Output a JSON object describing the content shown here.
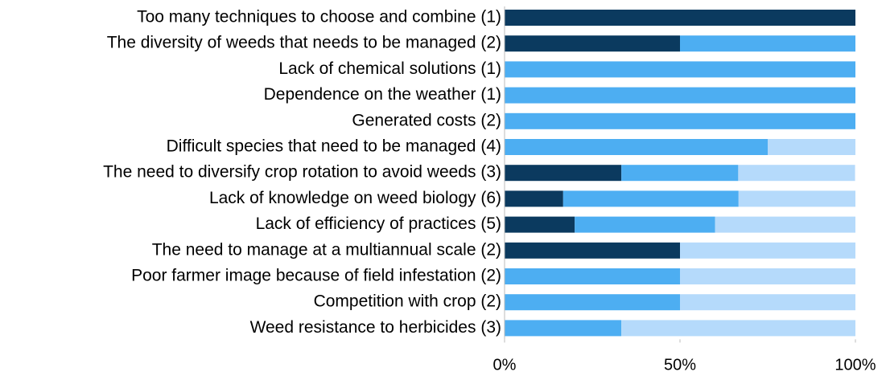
{
  "chart_data": {
    "type": "stacked_bar_horizontal",
    "categories": [
      "Too many techniques to choose and combine (1)",
      "The diversity of weeds that needs to be managed (2)",
      "Lack of chemical solutions (1)",
      "Dependence on the weather (1)",
      "Generated costs (2)",
      "Difficult species that need to be managed (4)",
      "The need to diversify crop rotation to avoid weeds (3)",
      "Lack of knowledge on weed biology (6)",
      "Lack of efficiency of practices (5)",
      "The need to manage at a multiannual scale (2)",
      "Poor farmer image because of field infestation (2)",
      "Competition with crop (2)",
      "Weed resistance to herbicides (3)"
    ],
    "series": [
      {
        "color": "#0b3a5f",
        "values": [
          100,
          50,
          0,
          0,
          0,
          0,
          33.3,
          16.7,
          20,
          50,
          0,
          0,
          0
        ]
      },
      {
        "color": "#4daef2",
        "values": [
          0,
          50,
          100,
          100,
          100,
          75,
          33.3,
          50,
          40,
          0,
          50,
          50,
          33.3
        ]
      },
      {
        "color": "#b5dafb",
        "values": [
          0,
          0,
          0,
          0,
          0,
          25,
          33.3,
          33.3,
          40,
          50,
          50,
          50,
          66.7
        ]
      }
    ],
    "xlim": [
      0,
      100
    ],
    "xticks": [
      {
        "value": 0,
        "label": "0%"
      },
      {
        "value": 50,
        "label": "50%"
      },
      {
        "value": 100,
        "label": "100%"
      }
    ]
  }
}
